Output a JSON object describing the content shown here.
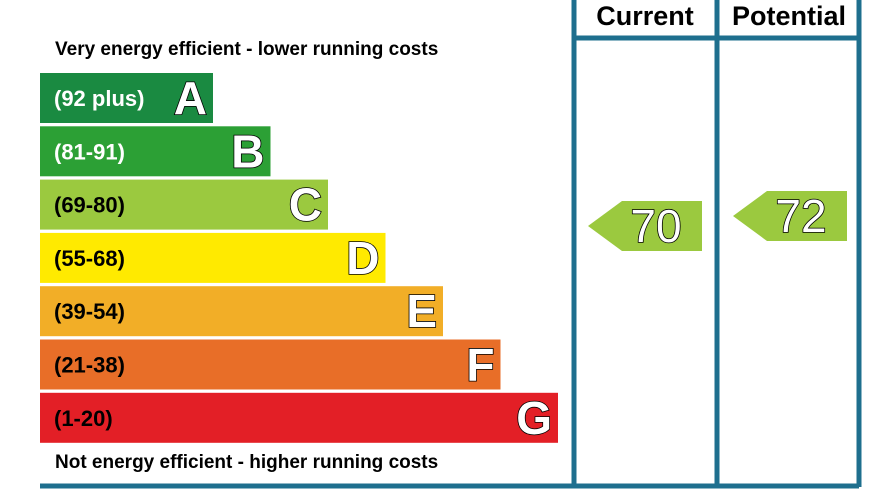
{
  "chart_data": {
    "type": "bar",
    "top_caption": "Very energy efficient - lower running costs",
    "bottom_caption": "Not energy efficient - higher running costs",
    "columns": [
      "Current",
      "Potential"
    ],
    "bands": [
      {
        "range": "(92 plus)",
        "letter": "A",
        "color": "#1a8a41",
        "text_color": "#ffffff"
      },
      {
        "range": "(81-91)",
        "letter": "B",
        "color": "#2ca035",
        "text_color": "#ffffff"
      },
      {
        "range": "(69-80)",
        "letter": "C",
        "color": "#9bc93f",
        "text_color": "#000000"
      },
      {
        "range": "(55-68)",
        "letter": "D",
        "color": "#ffea00",
        "text_color": "#000000"
      },
      {
        "range": "(39-54)",
        "letter": "E",
        "color": "#f2ae27",
        "text_color": "#000000"
      },
      {
        "range": "(21-38)",
        "letter": "F",
        "color": "#e86e28",
        "text_color": "#000000"
      },
      {
        "range": "(1-20)",
        "letter": "G",
        "color": "#e31f26",
        "text_color": "#000000"
      }
    ],
    "ratings": {
      "current": {
        "value": "70",
        "band": "C",
        "color": "#9bc93f"
      },
      "potential": {
        "value": "72",
        "band": "C",
        "color": "#9bc93f"
      }
    },
    "frame_color": "#1e6f8e"
  }
}
